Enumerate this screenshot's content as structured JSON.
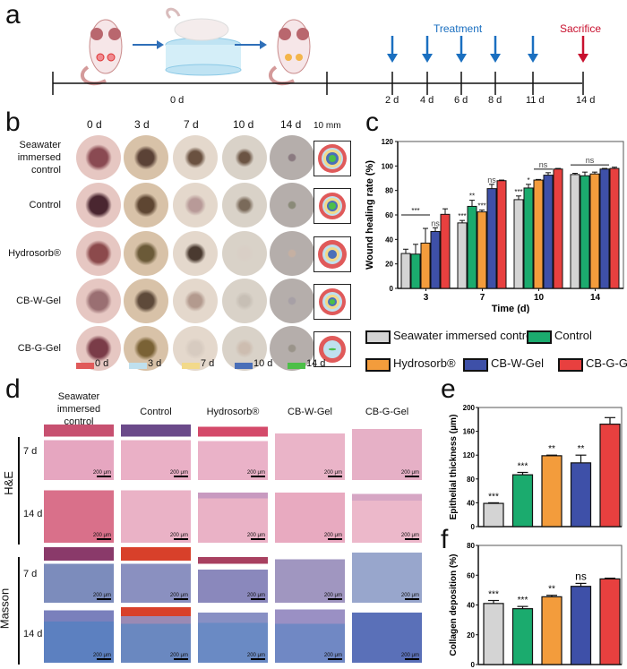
{
  "panels": {
    "a": "a",
    "b": "b",
    "c": "c",
    "d": "d",
    "e": "e",
    "f": "f"
  },
  "timeline": {
    "start_label": "0 d",
    "ticks": [
      "2 d",
      "4 d",
      "6 d",
      "8 d",
      "11 d",
      "14 d"
    ],
    "treatment_label": "Treatment",
    "sacrifice_label": "Sacrifice",
    "treatment_color": "#1a6fc0",
    "sacrifice_color": "#c8102e"
  },
  "wound_photos": {
    "days": [
      "0 d",
      "3 d",
      "7 d",
      "10 d",
      "14 d"
    ],
    "scale_label": "10 mm",
    "groups": [
      "Seawater\nimmersed\ncontrol",
      "Control",
      "Hydrosorb®",
      "CB-W-Gel",
      "CB-G-Gel"
    ],
    "trace_legend": [
      {
        "label": "0 d",
        "color": "#e05a5a"
      },
      {
        "label": "3 d",
        "color": "#bfe0ee"
      },
      {
        "label": "7 d",
        "color": "#f2d98a"
      },
      {
        "label": "10 d",
        "color": "#4a6fb8"
      },
      {
        "label": "14 d",
        "color": "#4cbf48"
      }
    ]
  },
  "histology": {
    "groups": [
      "Seawater immersed control",
      "Control",
      "Hydrosorb®",
      "CB-W-Gel",
      "CB-G-Gel"
    ],
    "stains": [
      "H&E",
      "Masson"
    ],
    "days": [
      "7 d",
      "14 d"
    ],
    "scale_label": "200 μm"
  },
  "legend": [
    {
      "label": "Seawater immersed control",
      "color": "#d4d4d4"
    },
    {
      "label": "Control",
      "color": "#1bab6e"
    },
    {
      "label": "Hydrosorb®",
      "color": "#f39c3c"
    },
    {
      "label": "CB-W-Gel",
      "color": "#3e50a8"
    },
    {
      "label": "CB-G-Gel",
      "color": "#e8403f"
    }
  ],
  "chart_data": [
    {
      "type": "bar",
      "id": "c",
      "title": "",
      "xlabel": "Time (d)",
      "ylabel": "Wound healing rate (%)",
      "categories": [
        "3",
        "7",
        "10",
        "14"
      ],
      "ylim": [
        0,
        120
      ],
      "yticks": [
        0,
        20,
        40,
        60,
        80,
        100,
        120
      ],
      "series": [
        {
          "name": "Seawater immersed control",
          "values": [
            28.5,
            53.5,
            72.5,
            93
          ],
          "errors": [
            3.5,
            2,
            3,
            1
          ]
        },
        {
          "name": "Control",
          "values": [
            28,
            67,
            82,
            92
          ],
          "errors": [
            8,
            5,
            3,
            3
          ]
        },
        {
          "name": "Hydrosorb®",
          "values": [
            37,
            62.5,
            88.5,
            93.5
          ],
          "errors": [
            12,
            1.5,
            0.5,
            1.5
          ]
        },
        {
          "name": "CB-W-Gel",
          "values": [
            46.5,
            81.5,
            92.5,
            97.5
          ],
          "errors": [
            3,
            3.5,
            2,
            0.5
          ]
        },
        {
          "name": "CB-G-Gel",
          "values": [
            60.5,
            88,
            97.5,
            98
          ],
          "errors": [
            4.5,
            0.5,
            0.5,
            1
          ]
        }
      ],
      "annotations": [
        {
          "category": "3",
          "text": "***",
          "span": [
            0,
            2
          ]
        },
        {
          "category": "3",
          "text": "ns",
          "series": 3
        },
        {
          "category": "7",
          "text": "***",
          "series": 0
        },
        {
          "category": "7",
          "text": "**",
          "series": 1
        },
        {
          "category": "7",
          "text": "***",
          "series": 2
        },
        {
          "category": "7",
          "text": "ns",
          "series": 3
        },
        {
          "category": "10",
          "text": "***",
          "series": 0
        },
        {
          "category": "10",
          "text": "*",
          "series": 1
        },
        {
          "category": "10",
          "text": "ns",
          "span": [
            2,
            3
          ]
        },
        {
          "category": "14",
          "text": "ns",
          "span": [
            0,
            3
          ]
        }
      ]
    },
    {
      "type": "bar",
      "id": "e",
      "ylabel": "Epithelial thickness (μm)",
      "categories": [
        "Seawater immersed control",
        "Control",
        "Hydrosorb®",
        "CB-W-Gel",
        "CB-G-Gel"
      ],
      "values": [
        39,
        87,
        119,
        107,
        172
      ],
      "errors": [
        1,
        4,
        1,
        13,
        11
      ],
      "ylim": [
        0,
        200
      ],
      "yticks": [
        0,
        40,
        80,
        120,
        160,
        200
      ],
      "annotations": [
        "***",
        "***",
        "**",
        "**",
        ""
      ]
    },
    {
      "type": "bar",
      "id": "f",
      "ylabel": "Collagen deposition (%)",
      "categories": [
        "Seawater immersed control",
        "Control",
        "Hydrosorb®",
        "CB-W-Gel",
        "CB-G-Gel"
      ],
      "values": [
        41,
        37.5,
        45.5,
        52.5,
        57.5
      ],
      "errors": [
        2,
        1.5,
        1,
        2,
        0.5
      ],
      "ylim": [
        0,
        80
      ],
      "yticks": [
        0,
        20,
        40,
        60,
        80
      ],
      "annotations": [
        "***",
        "***",
        "**",
        "ns",
        ""
      ]
    }
  ]
}
